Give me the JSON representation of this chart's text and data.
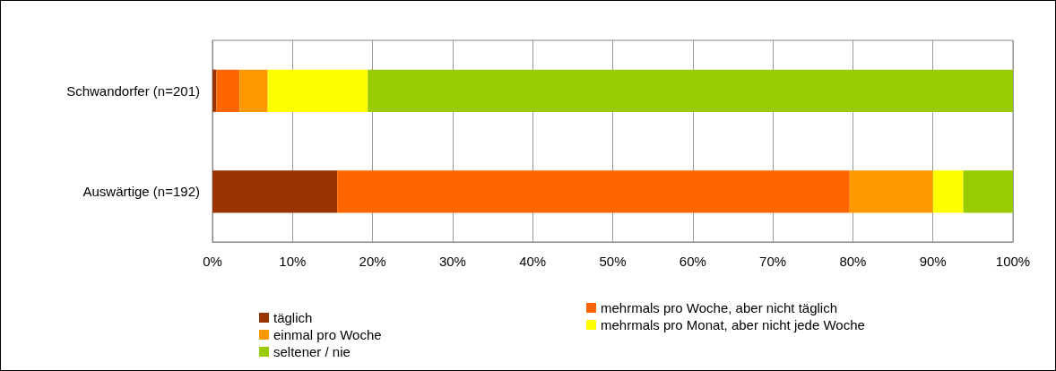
{
  "chart_data": {
    "type": "bar",
    "orientation": "horizontal",
    "stacked": true,
    "categories": [
      "Schwandorfer (n=201)",
      "Auswärtige (n=192)"
    ],
    "series": [
      {
        "name": "täglich",
        "color": "#993300",
        "values": [
          0.5,
          15.6
        ]
      },
      {
        "name": "mehrmals pro Woche, aber nicht täglich",
        "color": "#ff6600",
        "values": [
          2.9,
          64.0
        ]
      },
      {
        "name": "einmal pro Woche",
        "color": "#ff9900",
        "values": [
          3.5,
          10.4
        ]
      },
      {
        "name": "mehrmals pro Monat, aber nicht jede Woche",
        "color": "#ffff00",
        "values": [
          12.5,
          3.8
        ]
      },
      {
        "name": "seltener / nie",
        "color": "#99cc00",
        "values": [
          80.6,
          6.2
        ]
      }
    ],
    "xlim": [
      0,
      100
    ],
    "xticks": [
      {
        "value": 0,
        "label": "0%"
      },
      {
        "value": 10,
        "label": "10%"
      },
      {
        "value": 20,
        "label": "20%"
      },
      {
        "value": 30,
        "label": "30%"
      },
      {
        "value": 40,
        "label": "40%"
      },
      {
        "value": 50,
        "label": "50%"
      },
      {
        "value": 60,
        "label": "60%"
      },
      {
        "value": 70,
        "label": "70%"
      },
      {
        "value": 80,
        "label": "80%"
      },
      {
        "value": 90,
        "label": "90%"
      },
      {
        "value": 100,
        "label": "100%"
      }
    ],
    "grid": "x",
    "legend": "bottom"
  }
}
